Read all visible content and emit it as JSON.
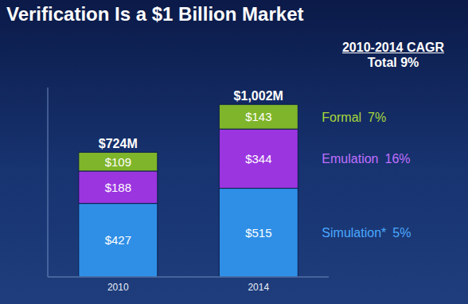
{
  "chart_data": {
    "type": "bar",
    "stacked": true,
    "title": "Verification Is a $1 Billion Market",
    "categories": [
      "2010",
      "2014"
    ],
    "series": [
      {
        "name": "Simulation*",
        "color": "#2f8fe6",
        "values": [
          427,
          515
        ],
        "value_labels": [
          "$427",
          "$515"
        ],
        "cagr_label": "5%"
      },
      {
        "name": "Emulation",
        "color": "#9b35e0",
        "values": [
          188,
          344
        ],
        "value_labels": [
          "$188",
          "$344"
        ],
        "cagr_label": "16%"
      },
      {
        "name": "Formal",
        "color": "#7fb52a",
        "values": [
          109,
          143
        ],
        "value_labels": [
          "$109",
          "$143"
        ],
        "cagr_label": "7%"
      }
    ],
    "totals": [
      724,
      1002
    ],
    "total_labels": [
      "$724M",
      "$1,002M"
    ],
    "cagr_heading": "2010-2014 CAGR",
    "cagr_total": "Total 9%",
    "ylim": [
      0,
      1100
    ],
    "yticks": [
      0,
      1100
    ],
    "data_labels": true,
    "tick_labels": "x",
    "grid": false
  }
}
